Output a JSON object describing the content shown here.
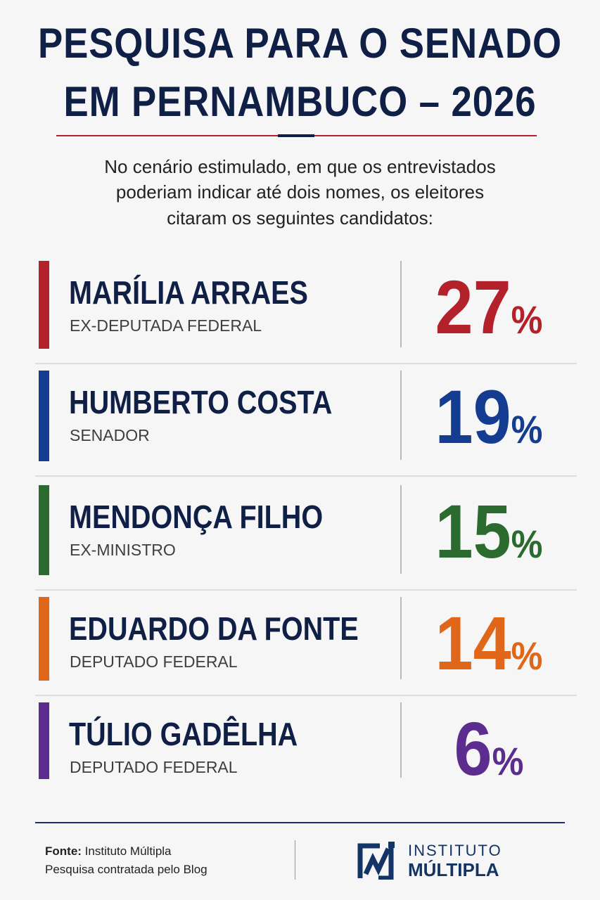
{
  "header": {
    "title_lines": [
      "PESQUISA PARA O SENADO",
      "EM PERNAMBUCO – 2026"
    ],
    "subtitle_lines": [
      "No cenário estimulado, em que os entrevistados",
      "poderiam indicar até dois nomes, os eleitores",
      "citaram os seguintes candidatos:"
    ]
  },
  "percent_sign": "%",
  "candidates": [
    {
      "name": "MARÍLIA ARRAES",
      "role": "EX-DEPUTADA FEDERAL",
      "percent": "27",
      "color": "#b3212b"
    },
    {
      "name": "HUMBERTO COSTA",
      "role": "SENADOR",
      "percent": "19",
      "color": "#143d92"
    },
    {
      "name": "MENDONÇA FILHO",
      "role": "EX-MINISTRO",
      "percent": "15",
      "color": "#2b6b30"
    },
    {
      "name": "EDUARDO DA FONTE",
      "role": "DEPUTADO FEDERAL",
      "percent": "14",
      "color": "#e0661a"
    },
    {
      "name": "TÚLIO GADÊLHA",
      "role": "DEPUTADO FEDERAL",
      "percent": "6",
      "color": "#5c2d8e"
    }
  ],
  "footer": {
    "source_label": "Fonte:",
    "source": "Instituto Múltipla",
    "note": "Pesquisa contratada pelo Blog",
    "logo_line1": "INSTITUTO",
    "logo_line2": "MÚLTIPLA"
  }
}
